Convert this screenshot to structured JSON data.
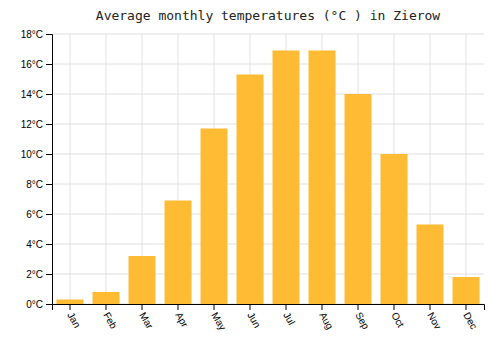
{
  "chart_data": {
    "type": "bar",
    "title": "Average monthly temperatures (°C ) in Zierow",
    "categories": [
      "Jan",
      "Feb",
      "Mar",
      "Apr",
      "May",
      "Jun",
      "Jul",
      "Aug",
      "Sep",
      "Oct",
      "Nov",
      "Dec"
    ],
    "values": [
      0.3,
      0.8,
      3.2,
      6.9,
      11.7,
      15.3,
      16.9,
      16.9,
      14.0,
      10.0,
      5.3,
      1.8
    ],
    "color": "#FFBB33",
    "ylim": [
      0,
      18
    ],
    "yticks": [
      {
        "value": 0,
        "label": "0°C"
      },
      {
        "value": 2,
        "label": "2°C"
      },
      {
        "value": 4,
        "label": "4°C"
      },
      {
        "value": 6,
        "label": "6°C"
      },
      {
        "value": 8,
        "label": "8°C"
      },
      {
        "value": 10,
        "label": "10°C"
      },
      {
        "value": 12,
        "label": "12°C"
      },
      {
        "value": 14,
        "label": "14°C"
      },
      {
        "value": 16,
        "label": "16°C"
      },
      {
        "value": 18,
        "label": "18°C"
      }
    ],
    "grid": true
  }
}
